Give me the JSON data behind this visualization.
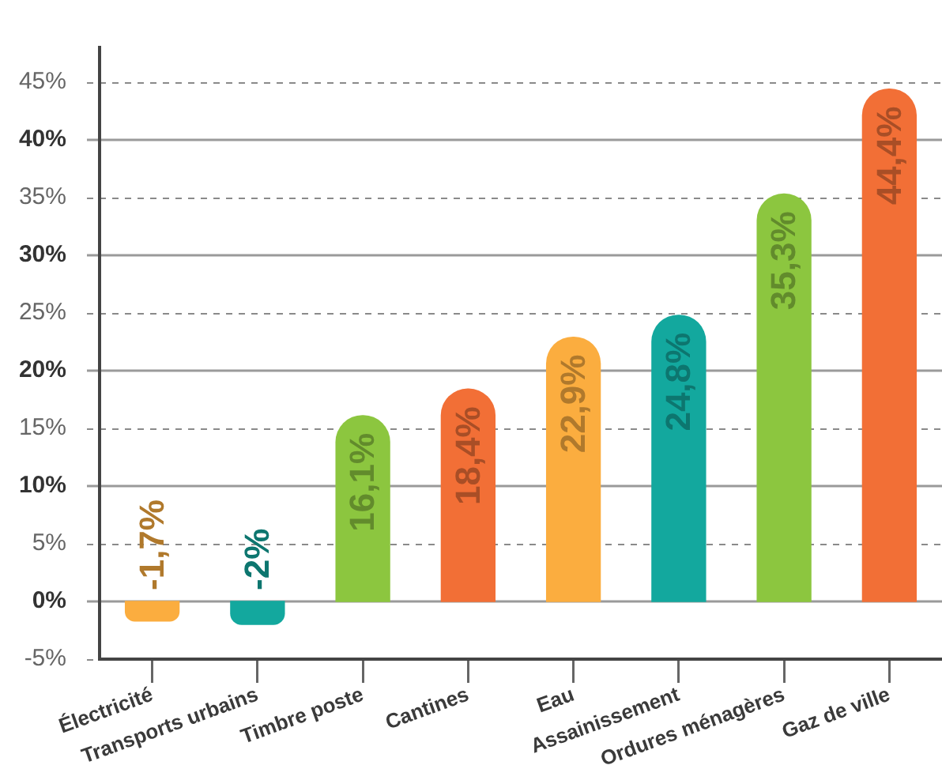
{
  "chart_data": {
    "type": "bar",
    "categories": [
      "Électricité",
      "Transports urbains",
      "Timbre poste",
      "Cantines",
      "Eau",
      "Assainissement",
      "Ordures ménagères",
      "Gaz de ville"
    ],
    "values": [
      -1.7,
      -2,
      16.1,
      18.4,
      22.9,
      24.8,
      35.3,
      44.4
    ],
    "colors": [
      "#fbad3f",
      "#13a89e",
      "#8cc63f",
      "#f26f36",
      "#fbad3f",
      "#13a89e",
      "#8cc63f",
      "#f26f36"
    ],
    "value_labels": [
      "-1,7%",
      "-2%",
      "16,1%",
      "18,4%",
      "22,9%",
      "24,8%",
      "35,3%",
      "44,4%"
    ],
    "ylim": [
      -5,
      48
    ],
    "yticks": [
      {
        "value": -5,
        "label": "-5%"
      },
      {
        "value": 0,
        "label": "0%"
      },
      {
        "value": 5,
        "label": "5%"
      },
      {
        "value": 10,
        "label": "10%"
      },
      {
        "value": 15,
        "label": "15%"
      },
      {
        "value": 20,
        "label": "20%"
      },
      {
        "value": 25,
        "label": "25%"
      },
      {
        "value": 30,
        "label": "30%"
      },
      {
        "value": 35,
        "label": "35%"
      },
      {
        "value": 40,
        "label": "40%"
      },
      {
        "value": 45,
        "label": "45%"
      }
    ],
    "grid": "y"
  }
}
